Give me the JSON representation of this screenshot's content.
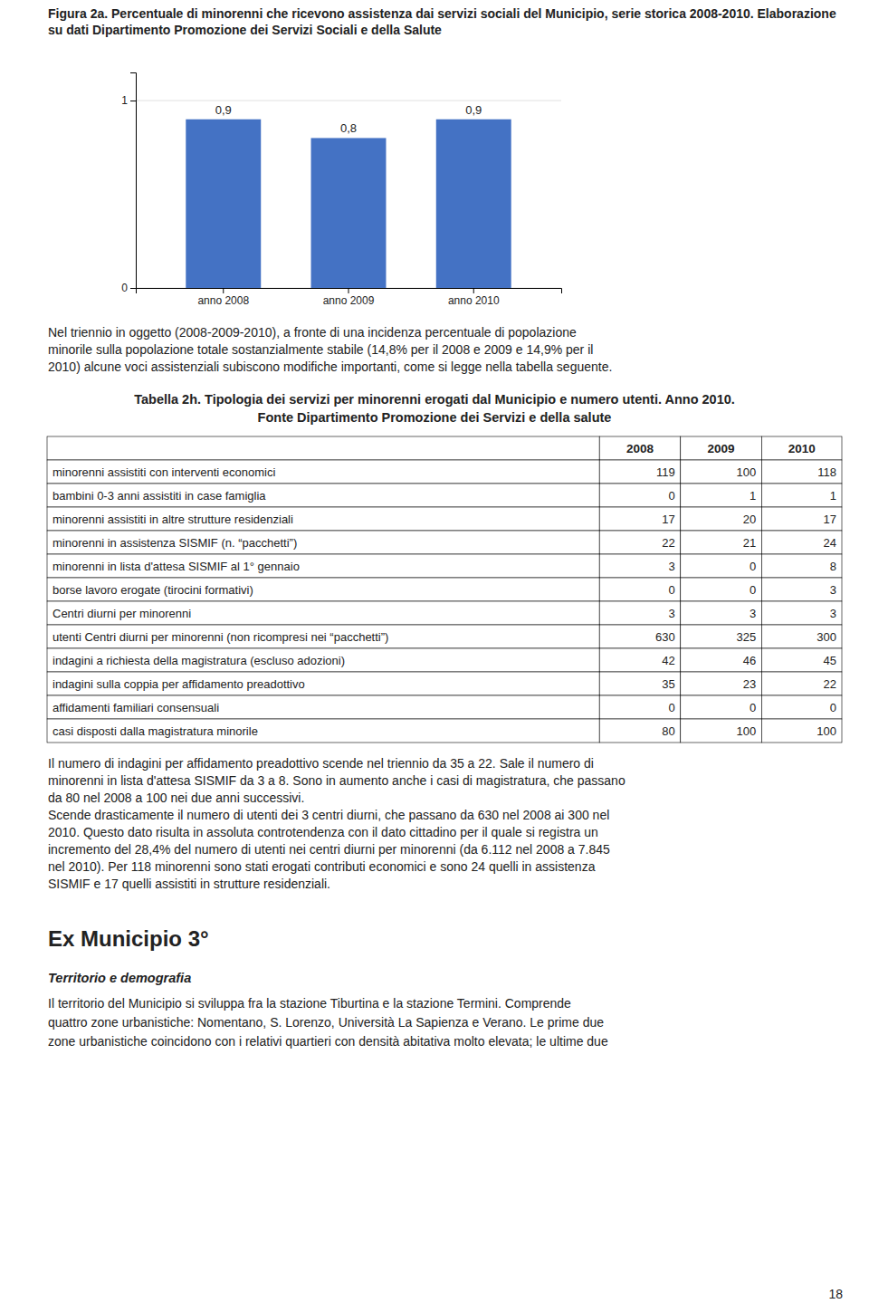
{
  "chart_data": {
    "type": "bar",
    "title": "Figura 2a. Percentuale di minorenni che ricevono assistenza dai servizi sociali del Municipio, serie storica 2008-2010. Elaborazione su dati Dipartimento Promozione dei Servizi Sociali e della Salute",
    "categories": [
      "anno 2008",
      "anno 2009",
      "anno 2010"
    ],
    "values": [
      0.9,
      0.8,
      0.9
    ],
    "value_labels": [
      "0,9",
      "0,8",
      "0,9"
    ],
    "data_labels": true,
    "color": "#4472C4",
    "ylim": [
      0,
      1.15
    ],
    "yticks": [
      0,
      1
    ],
    "grid": true
  },
  "paragraph1": [
    "Nel triennio in oggetto (2008-2009-2010), a fronte di una incidenza percentuale di popolazione",
    "minorile sulla popolazione totale sostanzialmente stabile (14,8% per il 2008 e 2009 e 14,9% per il",
    "2010) alcune voci assistenziali subiscono modifiche importanti, come si legge nella tabella seguente."
  ],
  "table": {
    "title": [
      "Tabella 2h. Tipologia dei servizi per minorenni erogati dal Municipio e numero utenti. Anno 2010.",
      "Fonte Dipartimento Promozione dei Servizi e della salute"
    ],
    "headers": [
      "2008",
      "2009",
      "2010"
    ],
    "rows": [
      [
        "minorenni assistiti con interventi economici",
        "119",
        "100",
        "118"
      ],
      [
        "bambini 0-3 anni assistiti in case famiglia",
        "0",
        "1",
        "1"
      ],
      [
        "minorenni assistiti in altre strutture residenziali",
        "17",
        "20",
        "17"
      ],
      [
        "minorenni in assistenza SISMIF (n. “pacchetti”)",
        "22",
        "21",
        "24"
      ],
      [
        "minorenni in lista d'attesa SISMIF al 1° gennaio",
        "3",
        "0",
        "8"
      ],
      [
        "borse lavoro erogate (tirocini formativi)",
        "0",
        "0",
        "3"
      ],
      [
        "Centri diurni per minorenni",
        "3",
        "3",
        "3"
      ],
      [
        "utenti Centri diurni per minorenni (non ricompresi nei “pacchetti”)",
        "630",
        "325",
        "300"
      ],
      [
        "indagini a richiesta della magistratura (escluso adozioni)",
        "42",
        "46",
        "45"
      ],
      [
        "indagini sulla coppia per affidamento preadottivo",
        "35",
        "23",
        "22"
      ],
      [
        "affidamenti familiari consensuali",
        "0",
        "0",
        "0"
      ],
      [
        "casi disposti dalla magistratura minorile",
        "80",
        "100",
        "100"
      ]
    ]
  },
  "paragraph2": [
    "Il numero di indagini per affidamento preadottivo scende nel triennio da 35 a 22. Sale il numero di",
    "minorenni in lista d'attesa SISMIF da 3 a 8. Sono in aumento anche i casi di magistratura, che passano",
    "da 80 nel 2008 a 100 nei due anni successivi.",
    "Scende drasticamente il numero di utenti dei 3 centri diurni, che passano da 630 nel 2008 ai 300 nel",
    "2010. Questo dato risulta in assoluta controtendenza con il dato cittadino per il quale si registra un",
    "incremento del 28,4% del numero di utenti nei centri diurni per minorenni (da 6.112 nel 2008 a 7.845",
    "nel 2010). Per 118 minorenni sono stati erogati contributi economici e sono 24 quelli in assistenza",
    "SISMIF e 17 quelli assistiti in strutture residenziali."
  ],
  "section_title": "Ex Municipio 3°",
  "subsection_title": "Territorio e demografia",
  "paragraph3": [
    "Il territorio del Municipio si sviluppa fra la stazione Tiburtina e la stazione Termini. Comprende",
    "quattro zone urbanistiche: Nomentano, S. Lorenzo, Università La Sapienza e Verano. Le prime due",
    "zone urbanistiche coincidono con i relativi quartieri con densità abitativa molto elevata; le ultime due"
  ],
  "page_number": "18"
}
